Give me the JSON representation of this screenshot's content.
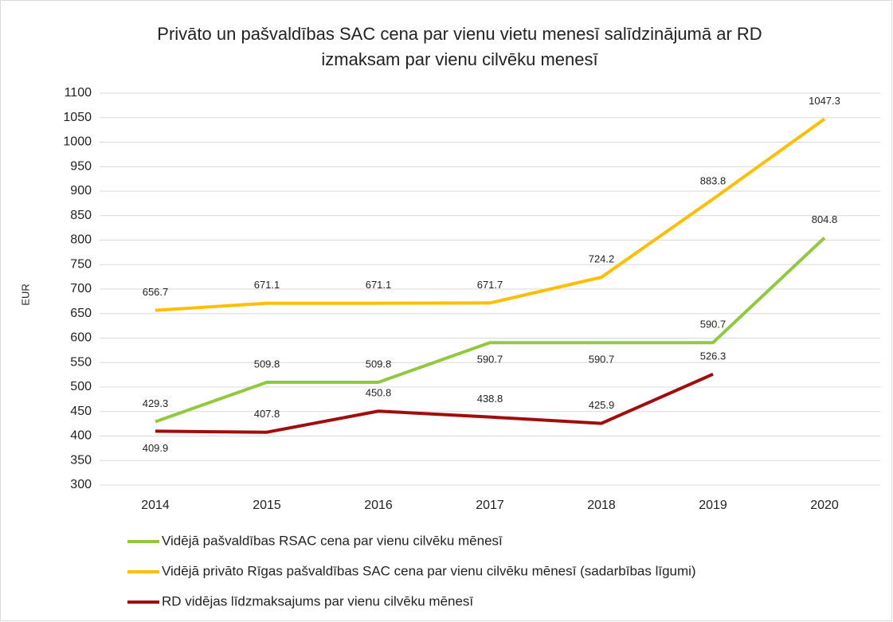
{
  "chart_data": {
    "type": "line",
    "title": [
      "Privāto un pašvaldības SAC cena par vienu vietu menesī salīdzinājumā ar RD",
      "izmaksam par vienu cilvēku menesī"
    ],
    "y_label": "EUR",
    "categories": [
      "2014",
      "2015",
      "2016",
      "2017",
      "2018",
      "2019",
      "2020"
    ],
    "series": [
      {
        "name": "Vidējā pašvaldības RSAC cena par vienu cilvēku mēnesī",
        "color": "#92c83e",
        "values": [
          429.3,
          509.8,
          509.8,
          590.7,
          590.7,
          590.7,
          804.8
        ]
      },
      {
        "name": "Vidējā privāto Rīgas pašvaldības SAC cena par vienu cilvēku mēnesī (sadarbības līgumi)",
        "color": "#ffbf00",
        "values": [
          656.7,
          671.1,
          671.1,
          671.7,
          724.2,
          883.8,
          1047.3
        ]
      },
      {
        "name": "RD vidējas līdzmaksajums par vienu cilvēku mēnesī",
        "color": "#a00d0d",
        "values": [
          409.9,
          407.8,
          450.8,
          438.8,
          425.9,
          526.3,
          null
        ]
      }
    ],
    "ylim": [
      300,
      1100
    ],
    "yticks": [
      300,
      350,
      400,
      450,
      500,
      550,
      600,
      650,
      700,
      750,
      800,
      850,
      900,
      950,
      1000,
      1050,
      1100
    ],
    "grid": true,
    "legend": "bottom"
  }
}
